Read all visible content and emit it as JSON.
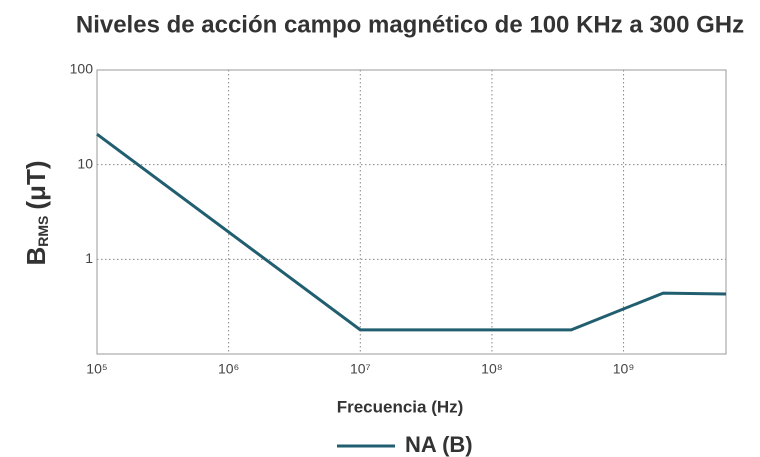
{
  "chart_data": {
    "type": "line",
    "title": "Niveles de acción campo magnético de 100 KHz a 300 GHz",
    "x_label": "Frecuencia (Hz)",
    "y_label": "B",
    "y_label_sub": "RMS",
    "y_label_unit": "(μT)",
    "x": [
      100000,
      10000000,
      400000000,
      2000000000,
      6000000000
    ],
    "series": [
      {
        "name": "NA (B)",
        "color": "#215f70",
        "values": [
          21,
          0.18,
          0.18,
          0.44,
          0.43
        ]
      }
    ],
    "xlim": [
      100000,
      6000000000
    ],
    "ylim": [
      0.1,
      100
    ],
    "xticks": [
      {
        "value": 100000,
        "label": "10⁵"
      },
      {
        "value": 1000000,
        "label": "10⁶"
      },
      {
        "value": 10000000,
        "label": "10⁷"
      },
      {
        "value": 100000000,
        "label": "10⁸"
      },
      {
        "value": 1000000000,
        "label": "10⁹"
      }
    ],
    "yticks": [
      1,
      10,
      100
    ],
    "xscale": "log",
    "yscale": "log",
    "grid": true,
    "legend": "bottom"
  }
}
